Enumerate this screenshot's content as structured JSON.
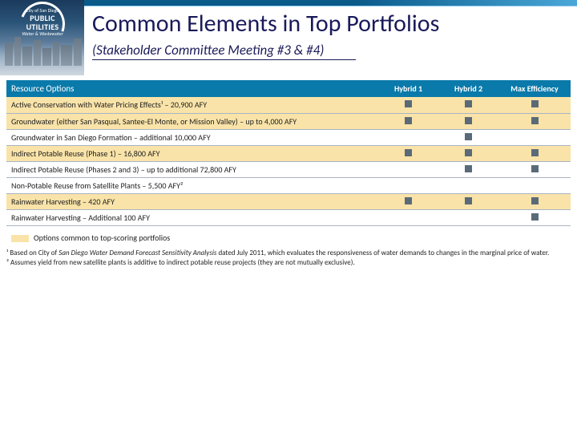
{
  "header": {
    "logo": {
      "line1": "City of San Diego",
      "line2": "PUBLIC UTILITIES",
      "line3": "Water & Wastewater"
    },
    "title": "Common Elements in Top Portfolios",
    "subtitle": "(Stakeholder Committee Meeting #3 & #4)"
  },
  "table": {
    "header_label": "Resource Options",
    "columns": [
      "Hybrid 1",
      "Hybrid 2",
      "Max Efficiency"
    ],
    "header_bg": "#0a7aaa",
    "highlight_bg": "#f9e3a8",
    "mark_color": "#5a6a78",
    "rows": [
      {
        "label": "Active Conservation with Water Pricing Effects¹ – 20,900 AFY",
        "marks": [
          true,
          true,
          true
        ],
        "hi": true
      },
      {
        "label": "Groundwater (either San Pasqual, Santee-El Monte, or Mission Valley) – up to 4,000 AFY",
        "marks": [
          true,
          true,
          true
        ],
        "hi": true
      },
      {
        "label": "Groundwater in San Diego Formation – additional 10,000 AFY",
        "marks": [
          false,
          true,
          false
        ],
        "hi": false
      },
      {
        "label": "Indirect Potable Reuse (Phase 1) – 16,800 AFY",
        "marks": [
          true,
          true,
          true
        ],
        "hi": true
      },
      {
        "label": "Indirect Potable Reuse (Phases 2 and 3) – up to additional 72,800 AFY",
        "marks": [
          false,
          true,
          true
        ],
        "hi": false
      },
      {
        "label": "Non-Potable Reuse from Satellite Plants – 5,500 AFY²",
        "marks": [
          false,
          false,
          false
        ],
        "hi": false
      },
      {
        "label": "Rainwater Harvesting – 420 AFY",
        "marks": [
          true,
          true,
          true
        ],
        "hi": true
      },
      {
        "label": "Rainwater Harvesting – Additional 100 AFY",
        "marks": [
          false,
          false,
          true
        ],
        "hi": false
      }
    ],
    "legend": "Options common to top-scoring portfolios"
  },
  "footnotes": {
    "f1_pre": "¹ Based on City of ",
    "f1_em": "San Diego Water Demand Forecast Sensitivity Analysis",
    "f1_post": " dated July 2011, which evaluates the responsiveness of water demands to changes in the marginal price of water.",
    "f2": "² Assumes yield from new satellite plants is additive to indirect potable reuse projects (they are not mutually exclusive)."
  }
}
